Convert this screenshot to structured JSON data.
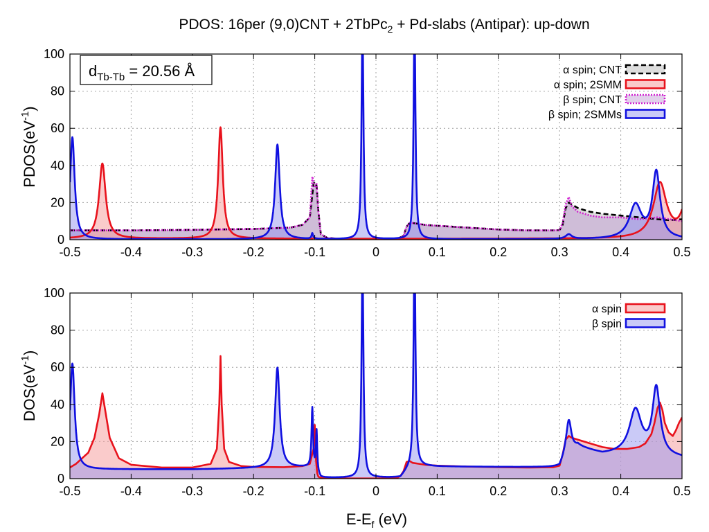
{
  "title": {
    "main": "PDOS: 16per (9,0)CNT + 2TbPc",
    "sub": "2",
    "rest": " + Pd-slabs (Antipar): up-down"
  },
  "annotation": {
    "d": "d",
    "sub": "Tb-Tb",
    "rest": " = 20.56 Å"
  },
  "colors": {
    "red": "#e8121c",
    "blue": "#1010e0",
    "magenta": "#d020d0",
    "black": "#000000",
    "red_fill": "rgba(245,160,160,0.55)",
    "blue_fill": "rgba(150,150,240,0.5)",
    "purple_fill": "rgba(190,150,210,0.45)",
    "gray_fill": "#dddddd"
  },
  "chart_data": [
    {
      "type": "area",
      "id": "top",
      "ylabel": {
        "main": "PDOS(eV",
        "sup": "-1",
        "end": ")"
      },
      "xlabel": "",
      "xlim": [
        -0.5,
        0.5
      ],
      "ylim": [
        0,
        100
      ],
      "xticks": [
        "-0.5",
        "-0.4",
        "-0.3",
        "-0.2",
        "-0.1",
        "0",
        "0.1",
        "0.2",
        "0.3",
        "0.4",
        "0.5"
      ],
      "yticks": [
        "0",
        "20",
        "40",
        "60",
        "80",
        "100"
      ],
      "grid": true,
      "legend_position": "top-right",
      "series": [
        {
          "name": "α spin; CNT",
          "style": "dashed-black",
          "x": [
            -0.5,
            -0.45,
            -0.4,
            -0.3,
            -0.2,
            -0.14,
            -0.12,
            -0.108,
            -0.102,
            -0.1,
            -0.097,
            -0.094,
            -0.09,
            -0.08,
            -0.06,
            -0.04,
            -0.02,
            0.0,
            0.02,
            0.035,
            0.045,
            0.05,
            0.055,
            0.06,
            0.08,
            0.1,
            0.15,
            0.2,
            0.25,
            0.29,
            0.3,
            0.305,
            0.31,
            0.315,
            0.32,
            0.33,
            0.35,
            0.37,
            0.4,
            0.43,
            0.46,
            0.48,
            0.5
          ],
          "y": [
            5,
            5,
            5,
            5.3,
            5.8,
            6.5,
            8,
            12,
            30,
            31,
            29,
            15,
            3,
            1,
            0.4,
            0.2,
            0.1,
            0.1,
            0.2,
            0.5,
            2,
            7,
            9,
            9,
            8,
            7.5,
            6.5,
            5.5,
            5,
            5,
            5.2,
            8,
            17,
            20,
            19,
            17,
            15,
            14,
            13,
            12,
            11,
            10.5,
            11
          ]
        },
        {
          "name": "α spin; 2SMM",
          "style": "red",
          "peaks": [
            [
              -0.447,
              40.5,
              0.0065
            ],
            [
              -0.254,
              60,
              0.0045
            ],
            [
              -0.1,
              0.4,
              0.002
            ],
            [
              0.464,
              29.5,
              0.013
            ],
            [
              0.51,
              25,
              0.01
            ]
          ],
          "base": 0.5
        },
        {
          "name": "β spin; CNT",
          "style": "dotted-magenta",
          "x": [
            -0.5,
            -0.45,
            -0.4,
            -0.3,
            -0.2,
            -0.14,
            -0.12,
            -0.108,
            -0.104,
            -0.1,
            -0.097,
            -0.094,
            -0.09,
            -0.08,
            -0.06,
            -0.04,
            -0.02,
            0.0,
            0.02,
            0.035,
            0.045,
            0.05,
            0.055,
            0.06,
            0.08,
            0.1,
            0.15,
            0.2,
            0.25,
            0.29,
            0.3,
            0.305,
            0.31,
            0.315,
            0.32,
            0.33,
            0.35,
            0.37,
            0.4,
            0.43,
            0.46,
            0.48,
            0.5
          ],
          "y": [
            5,
            5,
            5,
            5.3,
            5.8,
            6.5,
            8,
            12,
            34,
            28,
            30,
            15,
            3,
            1,
            0.4,
            0.2,
            0.1,
            0.1,
            0.2,
            0.5,
            2,
            7,
            9,
            9,
            8,
            7.5,
            6.5,
            5.5,
            5,
            5,
            5.2,
            9,
            19,
            23,
            18,
            15,
            13,
            12,
            12,
            11,
            12,
            11,
            10
          ]
        },
        {
          "name": "β spin; 2SMMs",
          "style": "blue",
          "peaks": [
            [
              -0.496,
              55,
              0.0045
            ],
            [
              -0.161,
              51,
              0.0045
            ],
            [
              -0.104,
              3,
              0.0015
            ],
            [
              -0.022,
              120,
              0.0018
            ],
            [
              0.063,
              120,
              0.0018
            ],
            [
              0.315,
              2.5,
              0.006
            ],
            [
              0.424,
              18,
              0.012
            ],
            [
              0.458,
              35.5,
              0.0075
            ]
          ],
          "base": 0.2
        }
      ]
    },
    {
      "type": "area",
      "id": "bottom",
      "ylabel": {
        "main": "DOS(eV",
        "sup": "-1",
        "end": ")"
      },
      "xlabel": {
        "main": "E-E",
        "sub": "f",
        "end": " (eV)"
      },
      "xlim": [
        -0.5,
        0.5
      ],
      "ylim": [
        0,
        100
      ],
      "xticks": [
        "-0.5",
        "-0.4",
        "-0.3",
        "-0.2",
        "-0.1",
        "0",
        "0.1",
        "0.2",
        "0.3",
        "0.4",
        "0.5"
      ],
      "yticks": [
        "0",
        "20",
        "40",
        "60",
        "80",
        "100"
      ],
      "grid": true,
      "legend_position": "top-right",
      "series": [
        {
          "name": "α spin",
          "style": "red",
          "x": [
            -0.5,
            -0.49,
            -0.47,
            -0.46,
            -0.452,
            -0.447,
            -0.442,
            -0.435,
            -0.42,
            -0.4,
            -0.35,
            -0.3,
            -0.27,
            -0.26,
            -0.256,
            -0.254,
            -0.252,
            -0.248,
            -0.24,
            -0.22,
            -0.2,
            -0.15,
            -0.12,
            -0.108,
            -0.102,
            -0.1,
            -0.098,
            -0.096,
            -0.094,
            -0.09,
            -0.085,
            -0.07,
            -0.05,
            -0.03,
            -0.02,
            0.0,
            0.02,
            0.035,
            0.04,
            0.045,
            0.05,
            0.055,
            0.06,
            0.08,
            0.1,
            0.15,
            0.2,
            0.25,
            0.29,
            0.3,
            0.305,
            0.31,
            0.315,
            0.32,
            0.33,
            0.35,
            0.37,
            0.39,
            0.41,
            0.43,
            0.44,
            0.45,
            0.455,
            0.46,
            0.464,
            0.468,
            0.472,
            0.478,
            0.485,
            0.49,
            0.495,
            0.5
          ],
          "y": [
            6,
            8,
            14,
            22,
            35,
            46,
            36,
            22,
            11,
            7.5,
            6,
            6,
            8,
            16,
            40,
            66,
            40,
            16,
            9,
            6.8,
            6.3,
            6.2,
            6.8,
            8,
            16,
            29,
            10,
            3,
            1,
            0.5,
            0.3,
            0.2,
            0.1,
            0.1,
            0.1,
            0.1,
            0.2,
            0.5,
            1.5,
            4,
            9,
            9.5,
            8.5,
            7.5,
            7,
            6.5,
            6.2,
            6,
            6.2,
            7,
            13,
            21,
            23,
            22,
            21,
            19,
            17,
            16,
            16,
            17,
            19,
            24,
            30,
            38,
            41,
            37,
            30,
            25,
            23,
            26,
            30,
            33
          ]
        },
        {
          "name": "β spin",
          "style": "blue",
          "peaks": [
            [
              -0.496,
              57,
              0.0045
            ],
            [
              -0.161,
              54,
              0.0045
            ],
            [
              -0.104,
              32,
              0.0015
            ],
            [
              -0.097,
              22,
              0.0012
            ],
            [
              -0.022,
              120,
              0.0018
            ],
            [
              0.063,
              120,
              0.0018
            ],
            [
              0.315,
              18,
              0.005
            ],
            [
              0.424,
              24,
              0.012
            ],
            [
              0.458,
              36,
              0.0075
            ]
          ],
          "base_points": [
            [
              -0.5,
              5
            ],
            [
              -0.3,
              5
            ],
            [
              -0.12,
              6
            ],
            [
              -0.105,
              6
            ],
            [
              -0.09,
              0.3
            ],
            [
              0.04,
              0.5
            ],
            [
              0.05,
              4
            ],
            [
              0.06,
              7
            ],
            [
              0.1,
              6.5
            ],
            [
              0.3,
              6
            ],
            [
              0.31,
              12
            ],
            [
              0.33,
              17
            ],
            [
              0.37,
              13
            ],
            [
              0.4,
              13
            ],
            [
              0.5,
              11
            ]
          ]
        }
      ]
    }
  ]
}
